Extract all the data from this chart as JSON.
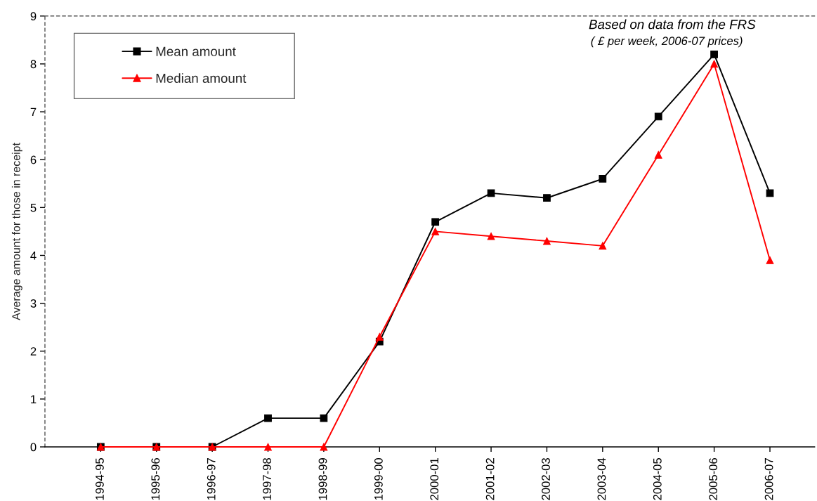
{
  "chart_data": {
    "type": "line",
    "categories": [
      "1994-95",
      "1995-96",
      "1996-97",
      "1997-98",
      "1998-99",
      "1999-00",
      "2000-01",
      "2001-02",
      "2002-03",
      "2003-04",
      "2004-05",
      "2005-06",
      "2006-07"
    ],
    "series": [
      {
        "name": "Mean amount",
        "color": "#000000",
        "marker": "square",
        "values": [
          0,
          0,
          0,
          0.6,
          0.6,
          2.2,
          4.7,
          5.3,
          5.2,
          5.6,
          6.9,
          8.2,
          5.3
        ]
      },
      {
        "name": "Median amount",
        "color": "#ff0000",
        "marker": "triangle",
        "values": [
          0,
          0,
          0,
          0,
          0,
          2.3,
          4.5,
          4.4,
          4.3,
          4.2,
          6.1,
          8.0,
          3.9
        ]
      }
    ],
    "ylabel": "Average amount for those in receipt",
    "ylim": [
      0,
      9
    ],
    "yticks": [
      0,
      1,
      2,
      3,
      4,
      5,
      6,
      7,
      8,
      9
    ],
    "annotations": [
      "Based on data from the FRS",
      "( £ per week, 2006-07 prices)"
    ],
    "legend": "top left",
    "grid": false,
    "line_style": "solid"
  }
}
